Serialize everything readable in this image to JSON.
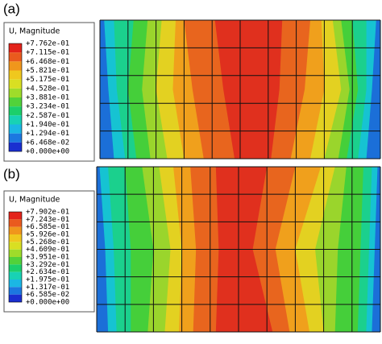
{
  "panels": [
    {
      "label": "(a)",
      "legend": {
        "title": "U, Magnitude",
        "labels": [
          "+7.762e-01",
          "+7.115e-01",
          "+6.468e-01",
          "+5.821e-01",
          "+5.175e-01",
          "+4.528e-01",
          "+3.881e-01",
          "+3.234e-01",
          "+2.587e-01",
          "+1.940e-01",
          "+1.294e-01",
          "+6.468e-02",
          "+0.000e+00"
        ]
      }
    },
    {
      "label": "(b)",
      "legend": {
        "title": "U, Magnitude",
        "labels": [
          "+7.902e-01",
          "+7.243e-01",
          "+6.585e-01",
          "+5.926e-01",
          "+5.268e-01",
          "+4.609e-01",
          "+3.951e-01",
          "+3.292e-01",
          "+2.634e-01",
          "+1.975e-01",
          "+1.317e-01",
          "+6.585e-02",
          "+0.000e+00"
        ]
      }
    }
  ]
}
